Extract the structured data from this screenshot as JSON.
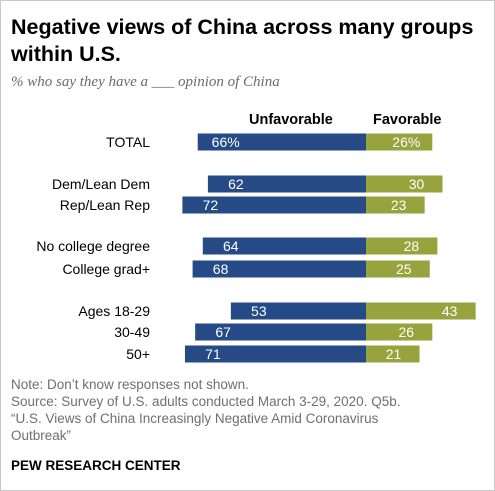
{
  "title": "Negative views of China across many groups within U.S.",
  "subtitle": "% who say they have a ___ opinion of China",
  "chart_data": {
    "type": "bar",
    "orientation": "diverging-horizontal",
    "series": [
      {
        "name": "Unfavorable",
        "color": "#264a86"
      },
      {
        "name": "Favorable",
        "color": "#97a33d"
      }
    ],
    "rows": [
      {
        "label": "TOTAL",
        "unfavorable": 66,
        "favorable": 26,
        "unfavorable_label": "66%",
        "favorable_label": "26%"
      },
      {
        "label": "Dem/Lean Dem",
        "unfavorable": 62,
        "favorable": 30,
        "unfavorable_label": "62",
        "favorable_label": "30"
      },
      {
        "label": "Rep/Lean Rep",
        "unfavorable": 72,
        "favorable": 23,
        "unfavorable_label": "72",
        "favorable_label": "23"
      },
      {
        "label": "No college degree",
        "unfavorable": 64,
        "favorable": 28,
        "unfavorable_label": "64",
        "favorable_label": "28"
      },
      {
        "label": "College grad+",
        "unfavorable": 68,
        "favorable": 25,
        "unfavorable_label": "68",
        "favorable_label": "25"
      },
      {
        "label": "Ages 18-29",
        "unfavorable": 53,
        "favorable": 43,
        "unfavorable_label": "53",
        "favorable_label": "43"
      },
      {
        "label": "30-49",
        "unfavorable": 67,
        "favorable": 26,
        "unfavorable_label": "67",
        "favorable_label": "26"
      },
      {
        "label": "50+",
        "unfavorable": 71,
        "favorable": 21,
        "unfavorable_label": "71",
        "favorable_label": "21"
      }
    ]
  },
  "notes": [
    "Note: Don’t know responses not shown.",
    "Source: Survey of U.S. adults conducted March 3-29, 2020. Q5b.",
    "“U.S. Views of China Increasingly Negative Amid Coronavirus",
    "Outbreak”"
  ],
  "org": "PEW RESEARCH CENTER"
}
